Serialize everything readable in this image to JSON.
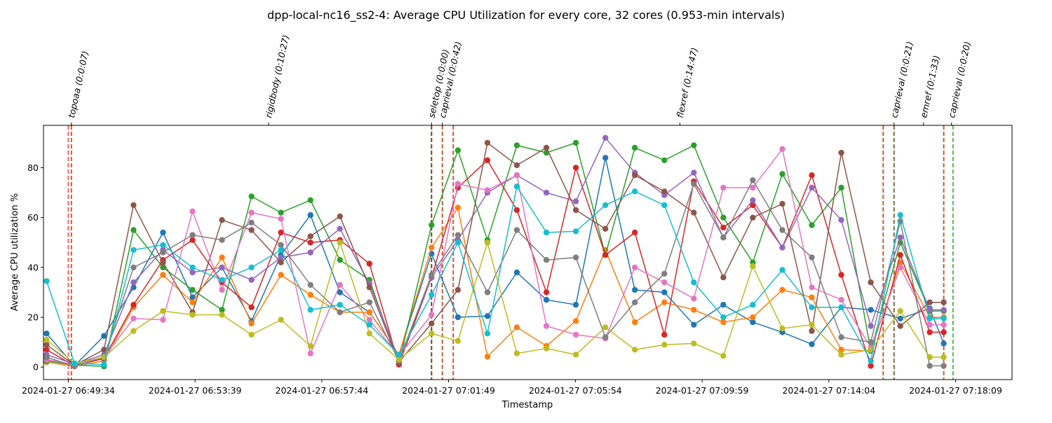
{
  "chart_data": {
    "type": "line",
    "title": "dpp-local-nc16_ss2-4: Average CPU Utilization for every core, 32 cores (0.953-min intervals)",
    "xlabel": "Timestamp",
    "ylabel": "Average CPU utilization %",
    "x_axis_unit": "minutes after 2024-01-27 06:49:34",
    "xlim": [
      -0.8,
      30.4
    ],
    "ylim": [
      -5,
      97
    ],
    "yticks": [
      0,
      20,
      40,
      60,
      80
    ],
    "grid": false,
    "legend": "none",
    "xticks": [
      {
        "x": 0,
        "label": "2024-01-27 06:49:34"
      },
      {
        "x": 4.083,
        "label": "2024-01-27 06:53:39"
      },
      {
        "x": 8.167,
        "label": "2024-01-27 06:57:44"
      },
      {
        "x": 12.25,
        "label": "2024-01-27 07:01:49"
      },
      {
        "x": 16.333,
        "label": "2024-01-27 07:05:54"
      },
      {
        "x": 20.417,
        "label": "2024-01-27 07:09:59"
      },
      {
        "x": 24.5,
        "label": "2024-01-27 07:14:04"
      },
      {
        "x": 28.583,
        "label": "2024-01-27 07:18:09"
      }
    ],
    "phases": [
      {
        "x": 0.1,
        "label": "topoaa (0:0:07)"
      },
      {
        "x": 6.45,
        "label": "rigidbody (0:10:27)"
      },
      {
        "x": 11.7,
        "label": "seletop (0:0:00)"
      },
      {
        "x": 12.05,
        "label": "caprieval (0:0:42)"
      },
      {
        "x": 19.7,
        "label": "flexref (0:14:47)"
      },
      {
        "x": 26.6,
        "label": "caprieval (0:0:21)"
      },
      {
        "x": 27.55,
        "label": "emref (0:1:33)"
      },
      {
        "x": 28.45,
        "label": "caprieval (0:0:20)"
      }
    ],
    "vlines": [
      {
        "x": 0.0,
        "color": "#f0665e"
      },
      {
        "x": 0.1,
        "color": "#c0603a"
      },
      {
        "x": 11.7,
        "color": "#7f3f14"
      },
      {
        "x": 12.05,
        "color": "#c0603a"
      },
      {
        "x": 12.4,
        "color": "#d3543a"
      },
      {
        "x": 26.25,
        "color": "#c0603a"
      },
      {
        "x": 26.6,
        "color": "#8a6a3e"
      },
      {
        "x": 28.2,
        "color": "#c0603a"
      },
      {
        "x": 28.5,
        "color": "#5cb85c"
      }
    ],
    "x": [
      -0.7,
      0.2,
      1.15,
      2.1,
      3.05,
      4.0,
      4.95,
      5.9,
      6.85,
      7.8,
      8.75,
      9.7,
      10.65,
      11.7,
      12.55,
      13.5,
      14.45,
      15.4,
      16.35,
      17.3,
      18.25,
      19.2,
      20.15,
      21.1,
      22.05,
      23.0,
      23.95,
      24.9,
      25.85,
      26.8,
      27.75,
      28.2
    ],
    "series": [
      {
        "color": "#1f77b4",
        "values": [
          13.5,
          0.5,
          12.5,
          32.0,
          54.0,
          28.0,
          40.0,
          18.5,
          45.0,
          61.0,
          30.0,
          22.0,
          5.0,
          45.5,
          20.0,
          20.5,
          38.0,
          27.0,
          25.0,
          84.0,
          31.0,
          30.0,
          17.0,
          25.0,
          18.0,
          14.0,
          9.2,
          24.0,
          23.0,
          19.5,
          23.5,
          9.5
        ]
      },
      {
        "color": "#ff7f0e",
        "values": [
          2.0,
          0.3,
          2.5,
          24.0,
          37.0,
          26.0,
          44.0,
          17.5,
          37.0,
          29.0,
          22.0,
          22.0,
          5.0,
          48.0,
          64.0,
          4.2,
          16.0,
          8.5,
          18.5,
          47.0,
          18.0,
          26.0,
          23.0,
          18.0,
          20.0,
          31.0,
          28.0,
          7.0,
          6.5,
          42.0,
          20.0,
          20.0
        ]
      },
      {
        "color": "#2ca02c",
        "values": [
          2.5,
          0.8,
          0.3,
          55.0,
          40.0,
          31.0,
          23.0,
          68.5,
          62.0,
          67.0,
          43.0,
          35.0,
          1.5,
          57.0,
          87.0,
          51.0,
          89.0,
          86.0,
          90.0,
          45.0,
          88.0,
          83.0,
          89.0,
          60.0,
          42.0,
          77.5,
          57.0,
          72.0,
          6.5,
          50.0,
          22.5,
          22.5
        ]
      },
      {
        "color": "#d62728",
        "values": [
          7.0,
          0.5,
          3.5,
          25.0,
          43.0,
          51.0,
          34.0,
          24.0,
          54.0,
          50.0,
          51.0,
          41.5,
          1.0,
          36.0,
          72.0,
          83.0,
          63.0,
          30.0,
          80.0,
          45.0,
          54.0,
          13.0,
          74.5,
          56.0,
          65.0,
          48.0,
          77.0,
          37.0,
          0.5,
          45.0,
          14.0,
          14.0
        ]
      },
      {
        "color": "#9467bd",
        "values": [
          5.0,
          1.2,
          5.0,
          34.0,
          47.0,
          38.0,
          40.0,
          35.0,
          44.0,
          46.0,
          55.5,
          33.5,
          3.0,
          36.0,
          51.0,
          70.0,
          77.0,
          70.0,
          66.5,
          92.0,
          78.0,
          69.0,
          78.0,
          52.0,
          67.0,
          48.0,
          72.0,
          59.0,
          16.5,
          52.0,
          23.0,
          23.0
        ]
      },
      {
        "color": "#8c564b",
        "values": [
          9.0,
          0.8,
          7.0,
          65.0,
          42.0,
          22.0,
          59.0,
          55.0,
          42.0,
          52.5,
          60.5,
          32.0,
          2.0,
          17.5,
          31.0,
          90.0,
          81.0,
          88.0,
          63.0,
          55.5,
          77.0,
          70.5,
          62.0,
          36.0,
          60.0,
          65.5,
          14.5,
          86.0,
          34.0,
          16.5,
          26.0,
          26.0
        ]
      },
      {
        "color": "#e377c2",
        "values": [
          3.0,
          1.0,
          4.0,
          19.5,
          19.0,
          62.5,
          31.0,
          62.0,
          59.5,
          5.5,
          33.0,
          19.0,
          4.5,
          21.0,
          73.5,
          71.0,
          77.0,
          16.5,
          13.0,
          11.5,
          40.0,
          34.0,
          27.5,
          72.0,
          72.0,
          87.5,
          32.0,
          27.0,
          8.0,
          40.0,
          17.0,
          17.0
        ]
      },
      {
        "color": "#7f7f7f",
        "values": [
          4.0,
          0.3,
          4.0,
          40.0,
          46.0,
          53.0,
          51.0,
          58.0,
          49.0,
          33.0,
          22.0,
          26.0,
          2.5,
          37.0,
          53.0,
          30.0,
          55.0,
          43.0,
          44.0,
          12.0,
          26.0,
          37.5,
          73.5,
          52.0,
          75.0,
          55.0,
          44.0,
          12.0,
          10.0,
          58.5,
          0.5,
          0.5
        ]
      },
      {
        "color": "#bcbd22",
        "values": [
          11.0,
          1.5,
          4.0,
          14.5,
          22.5,
          21.0,
          21.0,
          13.0,
          19.0,
          8.5,
          50.0,
          13.5,
          3.0,
          13.5,
          10.5,
          50.0,
          5.5,
          7.5,
          5.0,
          16.0,
          7.0,
          9.0,
          9.5,
          4.5,
          40.5,
          15.5,
          17.0,
          5.0,
          7.0,
          22.5,
          4.0,
          4.0
        ]
      },
      {
        "color": "#17becf",
        "values": [
          34.5,
          1.5,
          1.0,
          47.0,
          49.0,
          40.0,
          35.0,
          40.0,
          47.0,
          23.0,
          25.0,
          17.0,
          5.0,
          29.0,
          50.0,
          13.5,
          72.5,
          54.0,
          54.5,
          65.0,
          70.5,
          65.0,
          34.0,
          20.0,
          25.0,
          39.0,
          24.0,
          24.0,
          2.5,
          61.0,
          19.5,
          19.5
        ]
      }
    ]
  }
}
